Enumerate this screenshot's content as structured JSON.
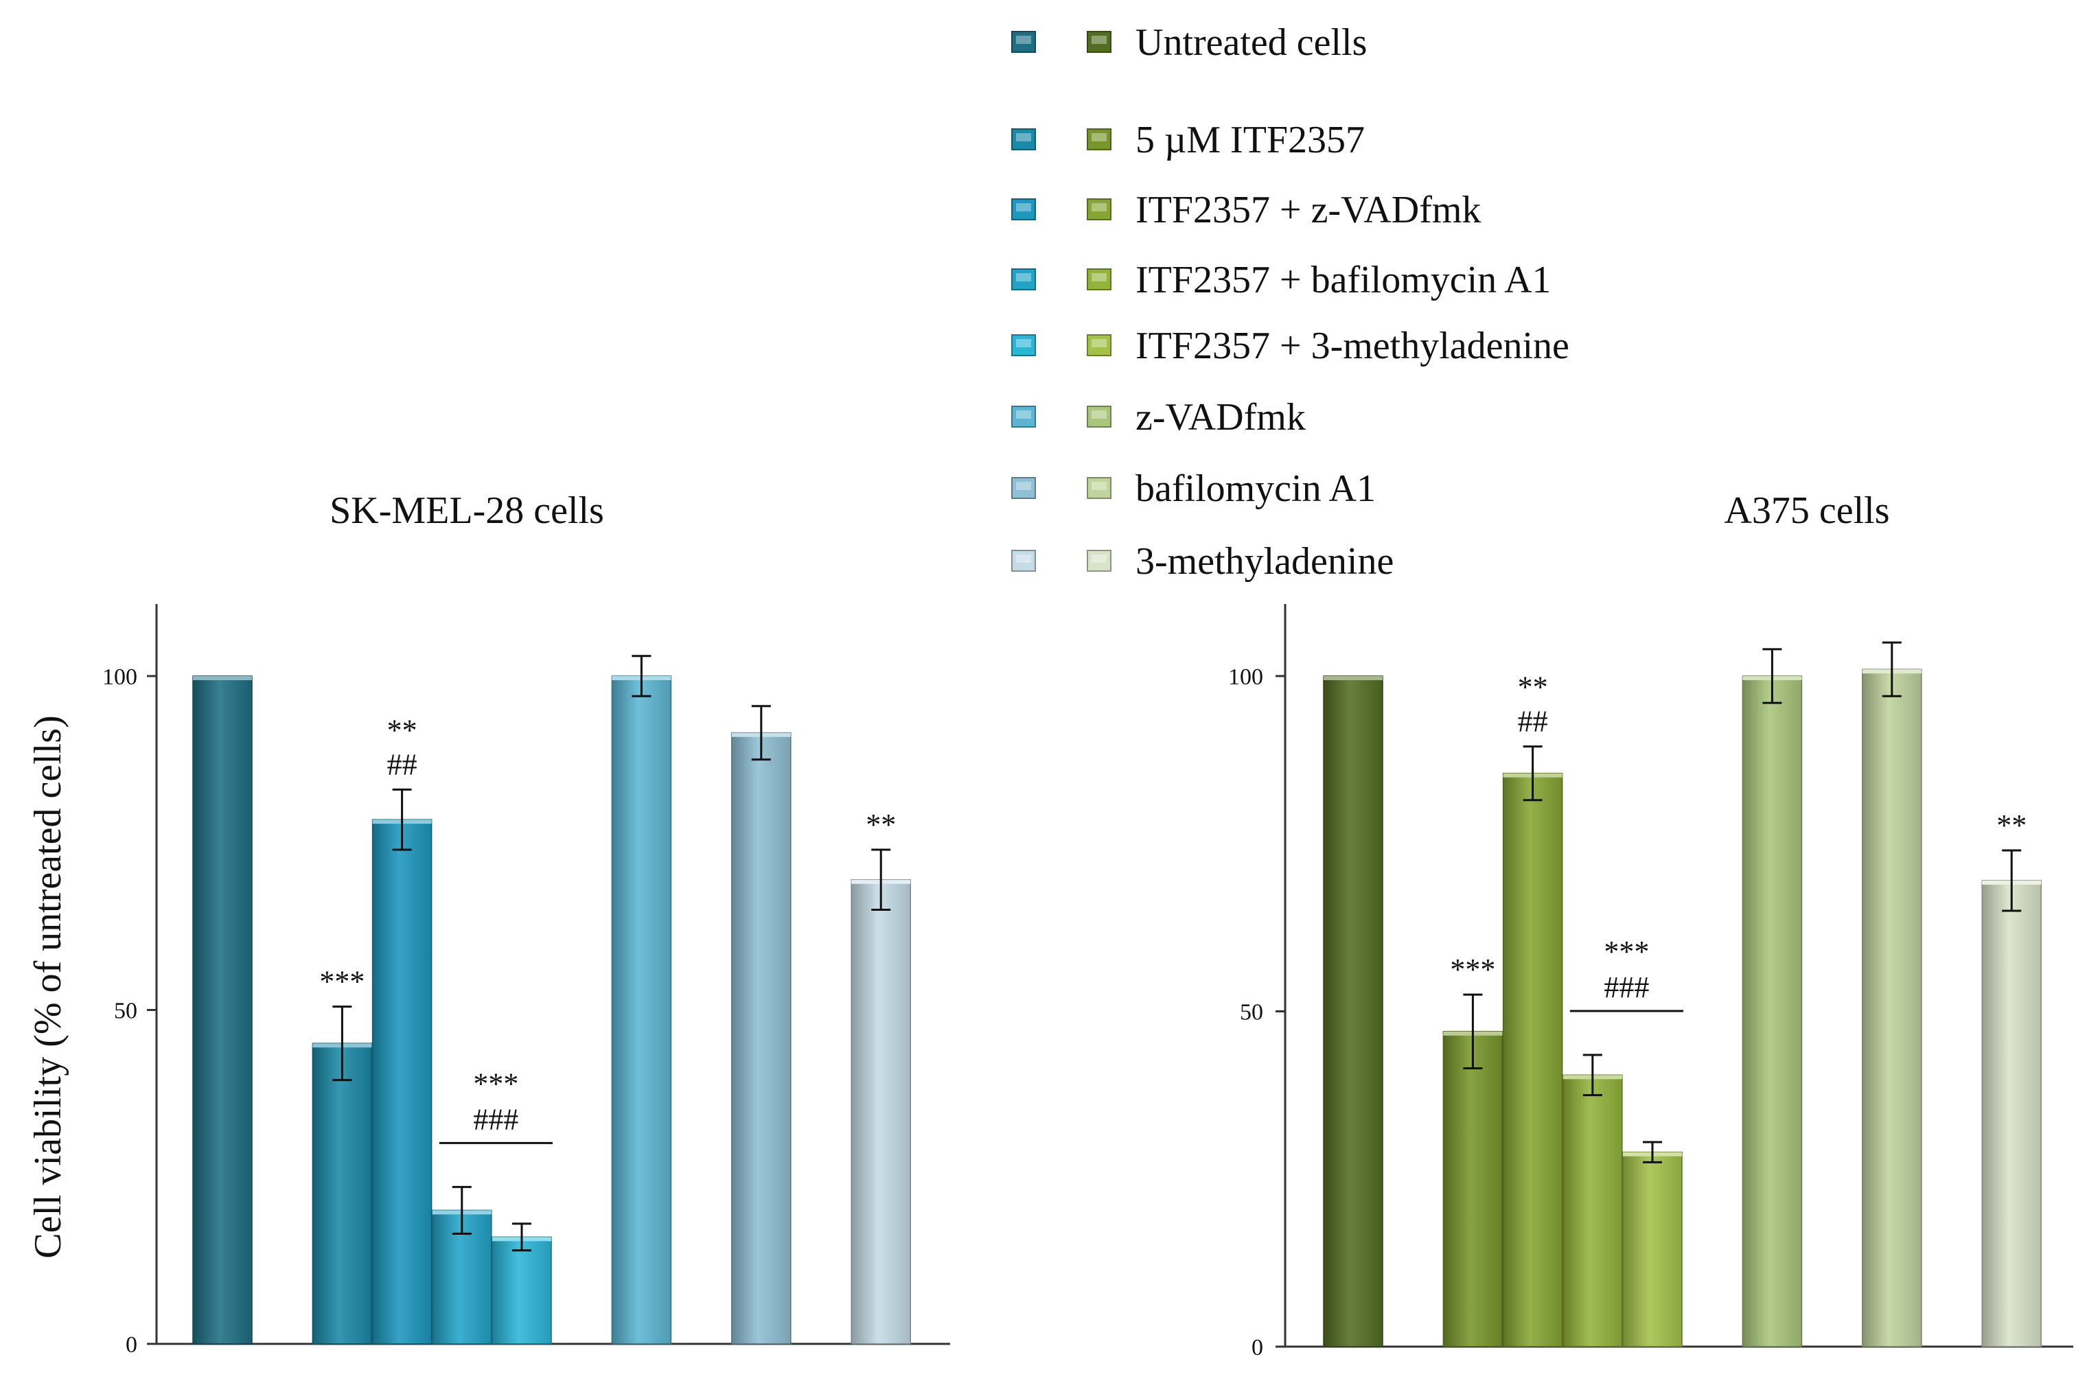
{
  "legend": [
    "Untreated cells",
    "5 µM ITF2357",
    "ITF2357 + z-VADfmk",
    "ITF2357 + bafilomycin A1",
    "ITF2357 + 3-methyladenine",
    "z-VADfmk",
    "bafilomycin A1",
    "3-methyladenine"
  ],
  "legend_colors": {
    "blue": [
      "#1e6f84",
      "#1b89a8",
      "#1c97bd",
      "#22a4c8",
      "#2bb6d8",
      "#5cb6d3",
      "#8fbfd3",
      "#c5dce6"
    ],
    "green": [
      "#536e22",
      "#78962c",
      "#86a634",
      "#93b43b",
      "#a4c24a",
      "#a9c67b",
      "#bfd49d",
      "#d9e3c8"
    ]
  },
  "chart_data": [
    {
      "type": "bar",
      "title": "SK-MEL-28 cells",
      "ylabel": "Cell viability (% of untreated cells)",
      "xlabel": "",
      "ylim": [
        0,
        110
      ],
      "yticks": [
        "0",
        "50",
        "100"
      ],
      "ytick_values": [
        0,
        50,
        100
      ],
      "categories": [
        "Untreated cells",
        "5 µM ITF2357",
        "ITF2357 + z-VADfmk",
        "ITF2357 + bafilomycin A1",
        "ITF2357 + 3-methyladenine",
        "z-VADfmk",
        "bafilomycin A1",
        "3-methyladenine"
      ],
      "values": [
        100,
        45,
        78.5,
        20,
        16,
        100,
        91.5,
        69.5
      ],
      "errors": [
        0,
        5.5,
        4.5,
        3.5,
        2,
        3,
        4,
        4.5
      ],
      "colors": [
        "#1e6f84",
        "#1b89a8",
        "#1c97bd",
        "#22a4c8",
        "#2bb6d8",
        "#5cb6d3",
        "#8fbfd3",
        "#c5dce6"
      ],
      "annotations": [
        {
          "bar": 1,
          "lines": [
            "***"
          ]
        },
        {
          "bar": 2,
          "lines": [
            "**",
            "##"
          ]
        },
        {
          "bar": 8,
          "lines": [
            "**"
          ]
        }
      ],
      "group_annotation": {
        "bars": [
          3,
          4
        ],
        "lines": [
          "***",
          "###"
        ]
      }
    },
    {
      "type": "bar",
      "title": "A375 cells",
      "ylabel": "",
      "xlabel": "",
      "ylim": [
        0,
        110
      ],
      "yticks": [
        "0",
        "50",
        "100"
      ],
      "ytick_values": [
        0,
        50,
        100
      ],
      "categories": [
        "Untreated cells",
        "5 µM ITF2357",
        "ITF2357 + z-VADfmk",
        "ITF2357 + bafilomycin A1",
        "ITF2357 + 3-methyladenine",
        "z-VADfmk",
        "bafilomycin A1",
        "3-methyladenine"
      ],
      "values": [
        100,
        47,
        85.5,
        40.5,
        29,
        100,
        101,
        69.5
      ],
      "errors": [
        0,
        5.5,
        4,
        3,
        1.5,
        4,
        4,
        4.5
      ],
      "colors": [
        "#536e22",
        "#78962c",
        "#86a634",
        "#93b43b",
        "#a4c24a",
        "#a9c67b",
        "#bfd49d",
        "#d9e3c8"
      ],
      "annotations": [
        {
          "bar": 1,
          "lines": [
            "***"
          ]
        },
        {
          "bar": 2,
          "lines": [
            "**",
            "##"
          ]
        },
        {
          "bar": 8,
          "lines": [
            "**"
          ]
        }
      ],
      "group_annotation": {
        "bars": [
          3,
          4
        ],
        "lines": [
          "***",
          "###"
        ]
      }
    }
  ]
}
